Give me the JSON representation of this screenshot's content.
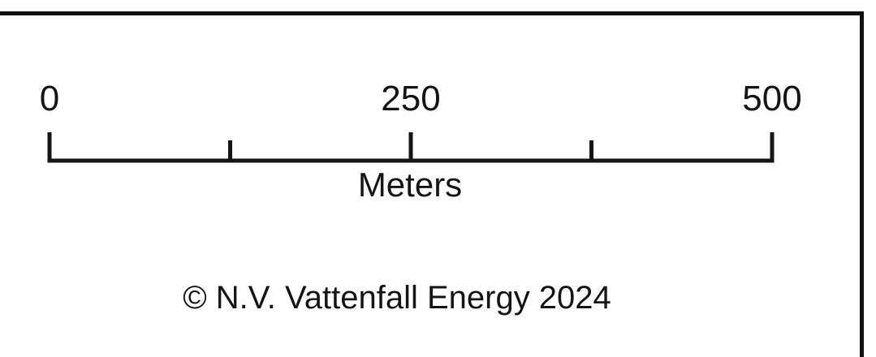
{
  "scale_bar": {
    "ticks": [
      {
        "value": 0,
        "label": "0"
      },
      {
        "value": 125,
        "label": ""
      },
      {
        "value": 250,
        "label": "250"
      },
      {
        "value": 375,
        "label": ""
      },
      {
        "value": 500,
        "label": "500"
      }
    ],
    "min": 0,
    "max": 500,
    "unit": "Meters",
    "color": "#151515"
  },
  "copyright": "© N.V. Vattenfall Energy 2024",
  "frame_color": "#111111"
}
